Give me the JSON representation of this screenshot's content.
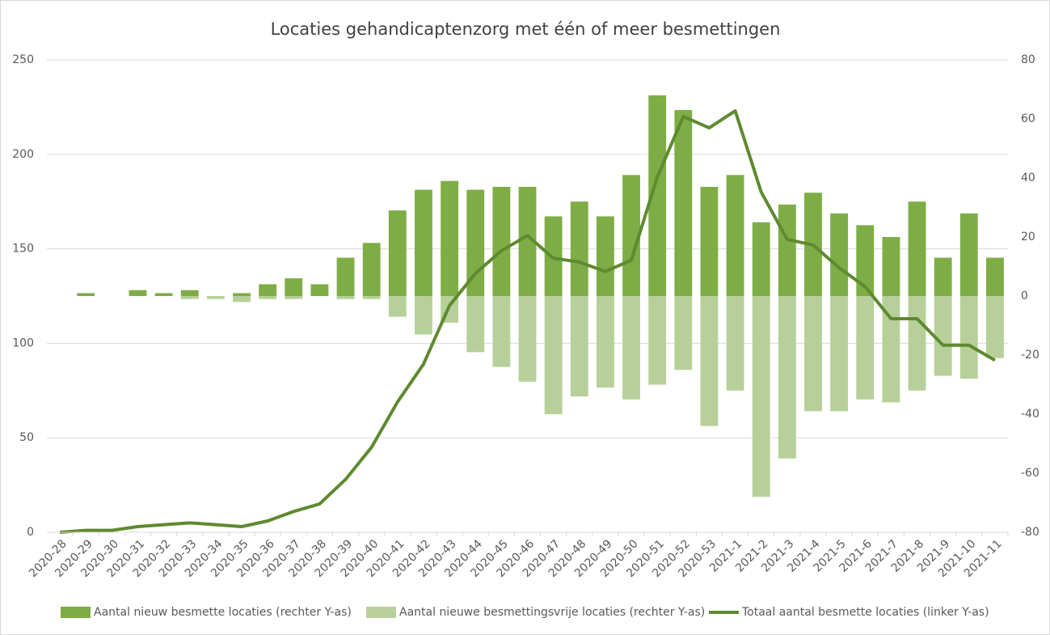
{
  "chart_data": {
    "type": "bar",
    "title": "Locaties gehandicaptenzorg met één of meer besmettingen",
    "categories": [
      "2020-28",
      "2020-29",
      "2020-30",
      "2020-31",
      "2020-32",
      "2020-33",
      "2020-34",
      "2020-35",
      "2020-36",
      "2020-37",
      "2020-38",
      "2020-39",
      "2020-40",
      "2020-41",
      "2020-42",
      "2020-43",
      "2020-44",
      "2020-45",
      "2020-46",
      "2020-47",
      "2020-48",
      "2020-49",
      "2020-50",
      "2020-51",
      "2020-52",
      "2020-53",
      "2021-1",
      "2021-2",
      "2021-3",
      "2021-4",
      "2021-5",
      "2021-6",
      "2021-7",
      "2021-8",
      "2021-9",
      "2021-10",
      "2021-11"
    ],
    "series": [
      {
        "name": "Aantal nieuw besmette locaties (rechter Y-as)",
        "type": "bar",
        "axis": "y2",
        "color": "#7ead45",
        "values": [
          0,
          1,
          0,
          2,
          1,
          2,
          0,
          1,
          4,
          6,
          4,
          13,
          18,
          29,
          36,
          39,
          36,
          37,
          37,
          27,
          32,
          27,
          41,
          68,
          63,
          37,
          41,
          25,
          31,
          35,
          28,
          24,
          20,
          32,
          13,
          28,
          13
        ]
      },
      {
        "name": "Aantal nieuwe besmettingsvrije locaties (rechter Y-as)",
        "type": "bar",
        "axis": "y2",
        "color": "#b7d09a",
        "values": [
          0,
          0,
          0,
          0,
          0,
          -1,
          -1,
          -2,
          -1,
          -1,
          0,
          -1,
          -1,
          -7,
          -13,
          -9,
          -19,
          -24,
          -29,
          -40,
          -34,
          -31,
          -35,
          -30,
          -25,
          -44,
          -32,
          -68,
          -55,
          -39,
          -39,
          -35,
          -36,
          -32,
          -27,
          -28,
          -21
        ]
      },
      {
        "name": "Totaal aantal besmette locaties (linker Y-as)",
        "type": "line",
        "color": "#5e8a30",
        "values": [
          0,
          1,
          1,
          3,
          4,
          5,
          4,
          3,
          6,
          11,
          15,
          28,
          45,
          69,
          89,
          120,
          137,
          149,
          157,
          145,
          143,
          138,
          144,
          188,
          220,
          214,
          223,
          180,
          155,
          152,
          140,
          130,
          113,
          113,
          99,
          99,
          91
        ]
      }
    ],
    "ylim": [
      0,
      250
    ],
    "yticks": [
      0,
      50,
      100,
      150,
      200,
      250
    ],
    "y2lim": [
      -80,
      80
    ],
    "y2ticks": [
      -80,
      -60,
      -40,
      -20,
      0,
      20,
      40,
      60,
      80
    ],
    "grid": true,
    "legend": "bottom"
  }
}
